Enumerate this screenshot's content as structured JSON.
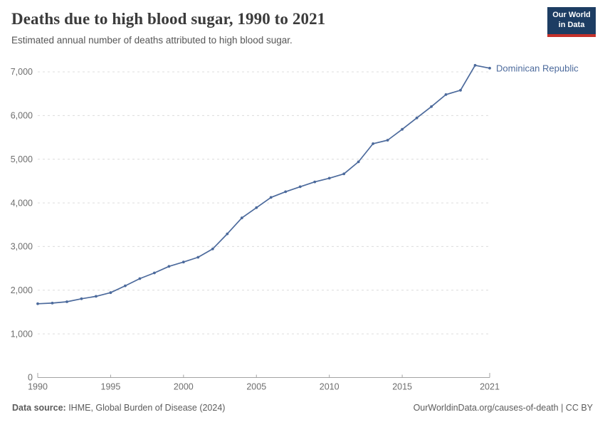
{
  "header": {
    "title": "Deaths due to high blood sugar, 1990 to 2021",
    "subtitle": "Estimated annual number of deaths attributed to high blood sugar."
  },
  "logo": {
    "line1": "Our World",
    "line2": "in Data",
    "background_color": "#1d3d63",
    "accent_color": "#c5312b"
  },
  "chart_data": {
    "type": "line",
    "title": "Deaths due to high blood sugar, 1990 to 2021",
    "subtitle": "Estimated annual number of deaths attributed to high blood sugar.",
    "xlabel": "",
    "ylabel": "",
    "x": [
      1990,
      1991,
      1992,
      1993,
      1994,
      1995,
      1996,
      1997,
      1998,
      1999,
      2000,
      2001,
      2002,
      2003,
      2004,
      2005,
      2006,
      2007,
      2008,
      2009,
      2010,
      2011,
      2012,
      2013,
      2014,
      2015,
      2016,
      2017,
      2018,
      2019,
      2020,
      2021
    ],
    "series": [
      {
        "name": "Dominican Republic",
        "color": "#4c6a9c",
        "values": [
          1690,
          1705,
          1735,
          1805,
          1860,
          1945,
          2100,
          2265,
          2395,
          2545,
          2645,
          2755,
          2945,
          3290,
          3655,
          3890,
          4125,
          4255,
          4370,
          4480,
          4565,
          4665,
          4940,
          5355,
          5435,
          5685,
          5945,
          6205,
          6480,
          6580,
          7150,
          7085
        ]
      }
    ],
    "xlim": [
      1990,
      2021
    ],
    "ylim": [
      0,
      7000
    ],
    "xticks": [
      1990,
      1995,
      2000,
      2005,
      2010,
      2015,
      2021
    ],
    "yticks": [
      0,
      1000,
      2000,
      3000,
      4000,
      5000,
      6000,
      7000
    ],
    "grid": "horizontal-dashed",
    "legend": "end-of-line-label",
    "colors": {
      "grid": "#dcdcdc",
      "axis": "#a3a3a3",
      "tick_label": "#6e6e6e"
    }
  },
  "footer": {
    "data_source_label": "Data source:",
    "data_source_value": " IHME, Global Burden of Disease (2024)",
    "credit": "OurWorldinData.org/causes-of-death | CC BY"
  }
}
